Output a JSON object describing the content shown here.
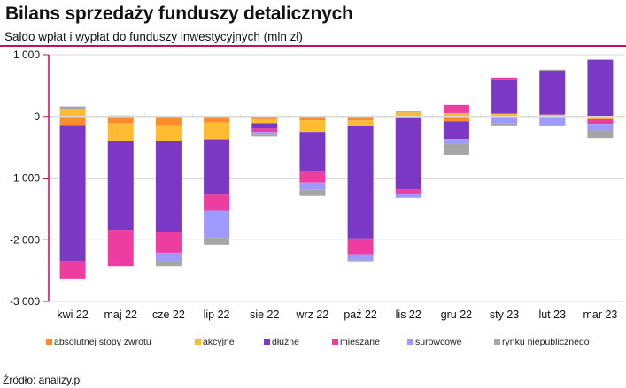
{
  "chart_data": {
    "type": "bar",
    "stacked": true,
    "title": "Bilans sprzedaży funduszy detalicznych",
    "subtitle": "Saldo wpłat i wypłat do funduszy inwestycyjnych (mln zł)",
    "categories": [
      "kwi 22",
      "maj 22",
      "cze 22",
      "lip 22",
      "sie 22",
      "wrz 22",
      "paź 22",
      "lis 22",
      "gru 22",
      "sty 23",
      "lut 23",
      "mar 23"
    ],
    "ylim": [
      -3000,
      1000
    ],
    "yticks": [
      1000,
      0,
      -1000,
      -2000,
      -3000
    ],
    "ytick_labels": [
      "1 000",
      "0",
      "-1 000",
      "-2 000",
      "-3 000"
    ],
    "grid": true,
    "legend": "bottom",
    "series": [
      {
        "name": "absolutnej stopy zwrotu",
        "color": "#ff8c2b",
        "values": [
          -140,
          -110,
          -140,
          -100,
          -50,
          -65,
          -65,
          -25,
          -80,
          0,
          15,
          -15
        ]
      },
      {
        "name": "akcyjne",
        "color": "#ffbb33",
        "values": [
          120,
          -290,
          -260,
          -270,
          -60,
          -185,
          -85,
          65,
          55,
          45,
          15,
          -30
        ]
      },
      {
        "name": "dłużne",
        "color": "#7a38c4",
        "values": [
          -2200,
          -1440,
          -1470,
          -900,
          -85,
          -640,
          -1830,
          -1155,
          -285,
          555,
          715,
          920
        ]
      },
      {
        "name": "mieszane",
        "color": "#ee3da1",
        "values": [
          -300,
          -590,
          -340,
          -260,
          -55,
          -185,
          -255,
          -70,
          130,
          30,
          -15,
          -75
        ]
      },
      {
        "name": "surowcowe",
        "color": "#9e9aff",
        "values": [
          0,
          0,
          -130,
          -440,
          -45,
          -115,
          -100,
          -70,
          -75,
          -105,
          -130,
          -105
        ]
      },
      {
        "name": "rynku niepublicznego",
        "color": "#a6a6a6",
        "values": [
          40,
          15,
          -90,
          -110,
          -30,
          -100,
          -15,
          15,
          -180,
          -40,
          15,
          -125
        ]
      }
    ]
  },
  "source": "Źródło: analizy.pl",
  "colors": {
    "accent": "#c4115c",
    "grid": "#d9d9d9"
  }
}
